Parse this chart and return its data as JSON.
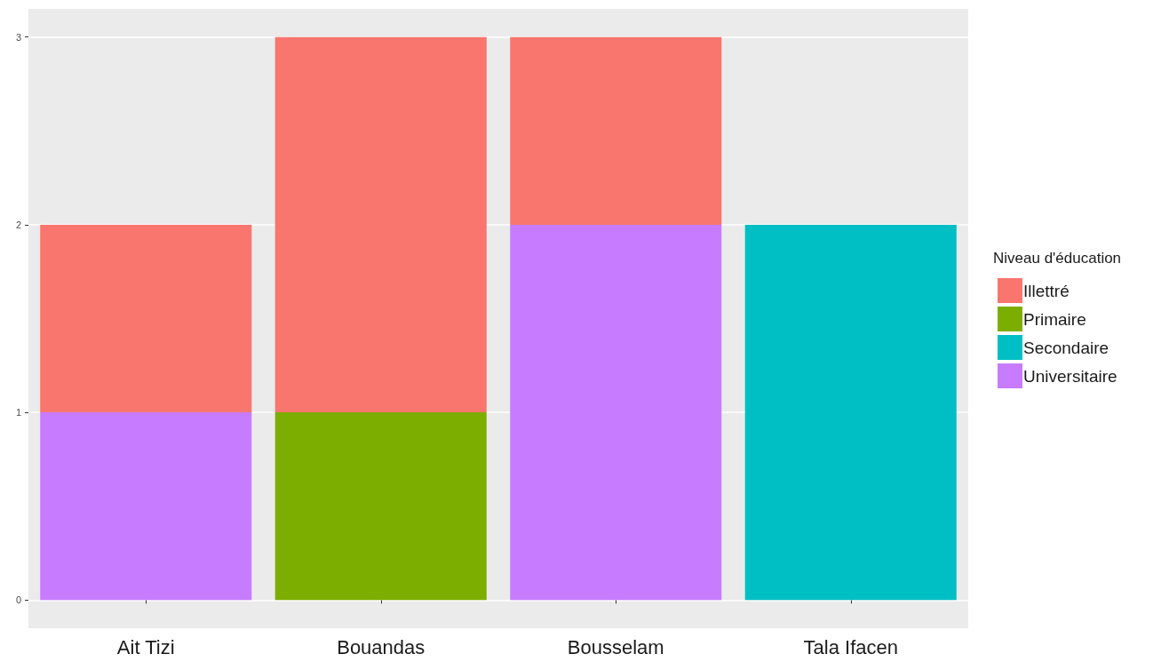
{
  "chart_data": {
    "type": "bar",
    "stacked": true,
    "categories": [
      "Ait Tizi",
      "Bouandas",
      "Bousselam",
      "Tala Ifacen"
    ],
    "series": [
      {
        "name": "Universitaire",
        "color": "#c77cff",
        "values": [
          1,
          null,
          2,
          null
        ]
      },
      {
        "name": "Secondaire",
        "color": "#00bfc4",
        "values": [
          null,
          null,
          null,
          2
        ]
      },
      {
        "name": "Primaire",
        "color": "#7cae00",
        "values": [
          null,
          1,
          null,
          null
        ]
      },
      {
        "name": "Illettré",
        "color": "#f8766d",
        "values": [
          1,
          2,
          1,
          null
        ]
      }
    ],
    "legend_title": "Niveau d'éducation",
    "legend": "right",
    "ylim": [
      -0.15,
      3.15
    ],
    "yticks": [
      0,
      1,
      2,
      3
    ],
    "grid": true
  }
}
